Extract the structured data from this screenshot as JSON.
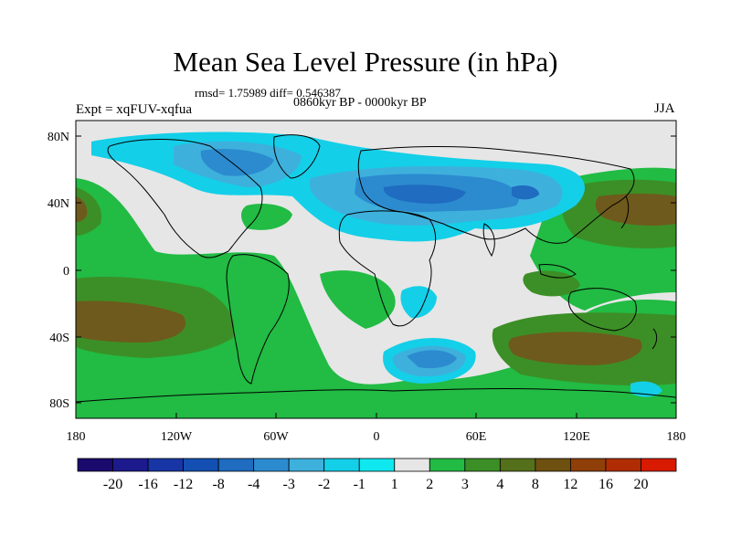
{
  "figure": {
    "title": "Mean Sea Level Pressure (in hPa)",
    "stats": "rmsd= 1.75989 diff= 0.546387",
    "period": "0860kyr BP - 0000kyr BP",
    "experiment": "Expt = xqFUV-xqfua",
    "season": "JJA"
  },
  "axes": {
    "lat_labels": [
      "80N",
      "40N",
      "0",
      "40S",
      "80S"
    ],
    "lon_labels": [
      "180",
      "120W",
      "60W",
      "0",
      "60E",
      "120E",
      "180"
    ]
  },
  "colorbar": {
    "labels": [
      "-20",
      "-16",
      "-12",
      "-8",
      "-4",
      "-3",
      "-2",
      "-1",
      "1",
      "2",
      "3",
      "4",
      "8",
      "12",
      "16",
      "20"
    ],
    "colors": [
      "#1a0a6e",
      "#1c1a8c",
      "#1835a6",
      "#1450b3",
      "#1f6cc0",
      "#2c8bcf",
      "#3eb0dc",
      "#14cfe8",
      "#10e8f0",
      "#e6e6e6",
      "#22bb44",
      "#3c8f26",
      "#55701a",
      "#6e5010",
      "#8e4008",
      "#b02c04",
      "#d81a00"
    ]
  },
  "legend": {
    "neutral": "#e6e6e6",
    "ocean_positive": "#22bb44",
    "land_outline": "#000000"
  }
}
